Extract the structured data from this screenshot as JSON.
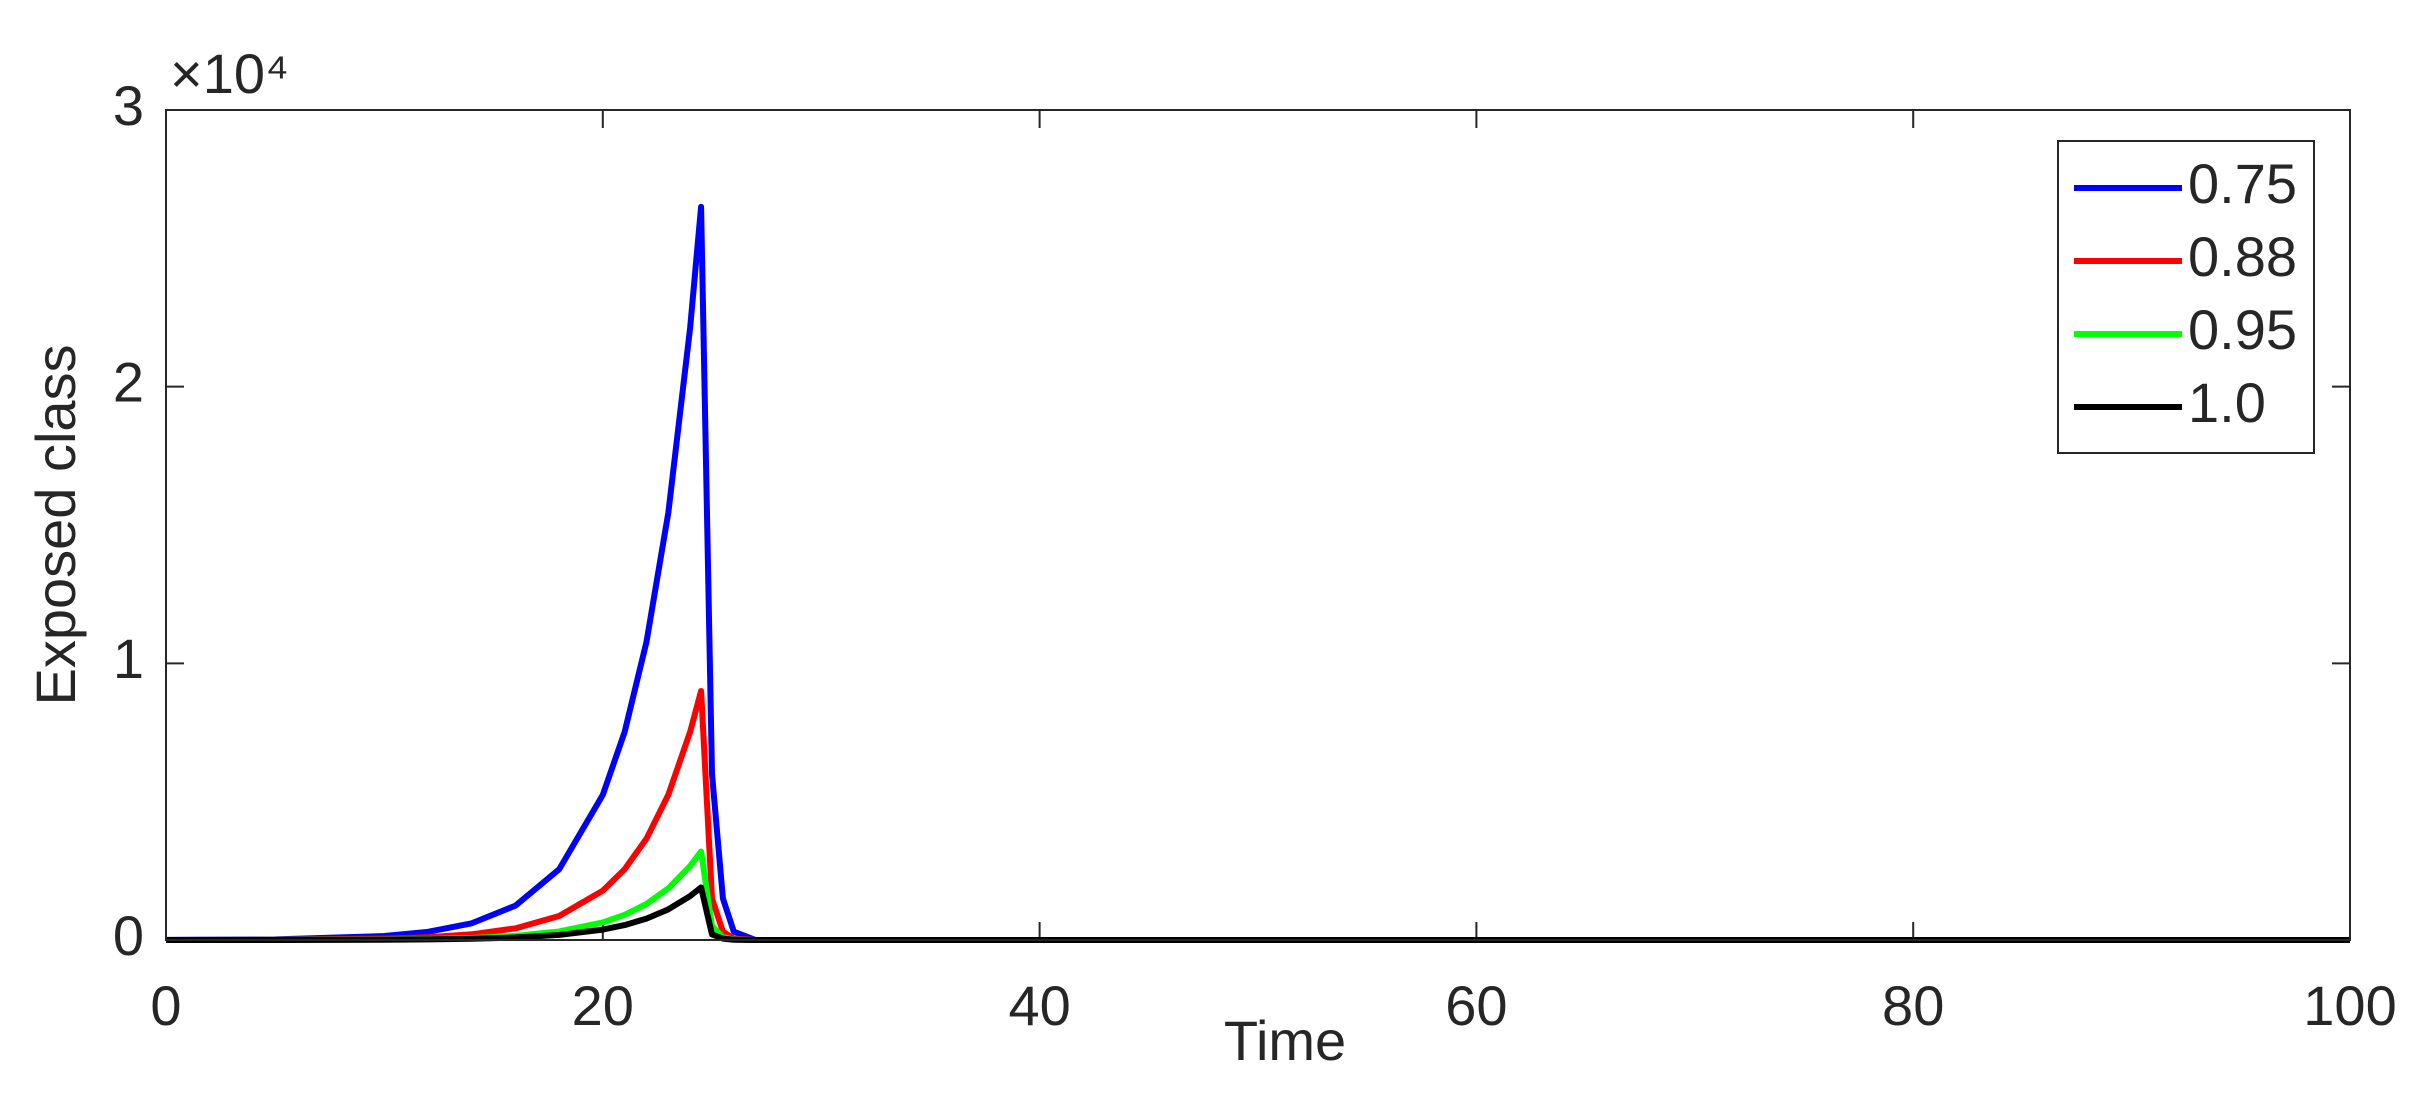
{
  "chart_data": {
    "type": "line",
    "xlabel": "Time",
    "ylabel": "Exposed class",
    "y_multiplier": "×10⁴",
    "x": [
      0,
      5,
      10,
      12,
      14,
      16,
      18,
      20,
      21,
      22,
      23,
      24,
      24.5,
      25,
      25.5,
      26,
      27,
      30,
      40,
      60,
      80,
      100
    ],
    "series": [
      {
        "name": "0.75",
        "color": "#0000ff",
        "values": [
          4,
          24,
          143,
          294,
          605,
          1242,
          2553,
          5245,
          7518,
          10774,
          15444,
          22137,
          26500,
          6000,
          1500,
          300,
          0,
          0,
          0,
          0,
          0,
          0
        ]
      },
      {
        "name": "0.88",
        "color": "#ff0000",
        "values": [
          1,
          8,
          49,
          100,
          206,
          422,
          868,
          1783,
          2556,
          3663,
          5251,
          7526,
          9000,
          1500,
          300,
          50,
          0,
          0,
          0,
          0,
          0,
          0
        ]
      },
      {
        "name": "0.95",
        "color": "#00ff00",
        "values": [
          0,
          3,
          17,
          36,
          73,
          150,
          309,
          634,
          909,
          1302,
          1867,
          2676,
          3200,
          500,
          100,
          20,
          0,
          0,
          0,
          0,
          0,
          0
        ]
      },
      {
        "name": "1.0",
        "color": "#000000",
        "values": [
          0,
          2,
          10,
          21,
          43,
          89,
          183,
          376,
          539,
          773,
          1108,
          1589,
          1900,
          200,
          50,
          10,
          0,
          0,
          0,
          0,
          0,
          0
        ]
      }
    ],
    "xlim": [
      0,
      100
    ],
    "xticks": [
      0,
      20,
      40,
      60,
      80,
      100
    ],
    "ylim": [
      0,
      30000
    ],
    "yticks": [
      {
        "value": 0,
        "label": "0"
      },
      {
        "value": 10000,
        "label": "1"
      },
      {
        "value": 20000,
        "label": "2"
      },
      {
        "value": 30000,
        "label": "3"
      }
    ],
    "legend": "upper right",
    "grid": false
  }
}
